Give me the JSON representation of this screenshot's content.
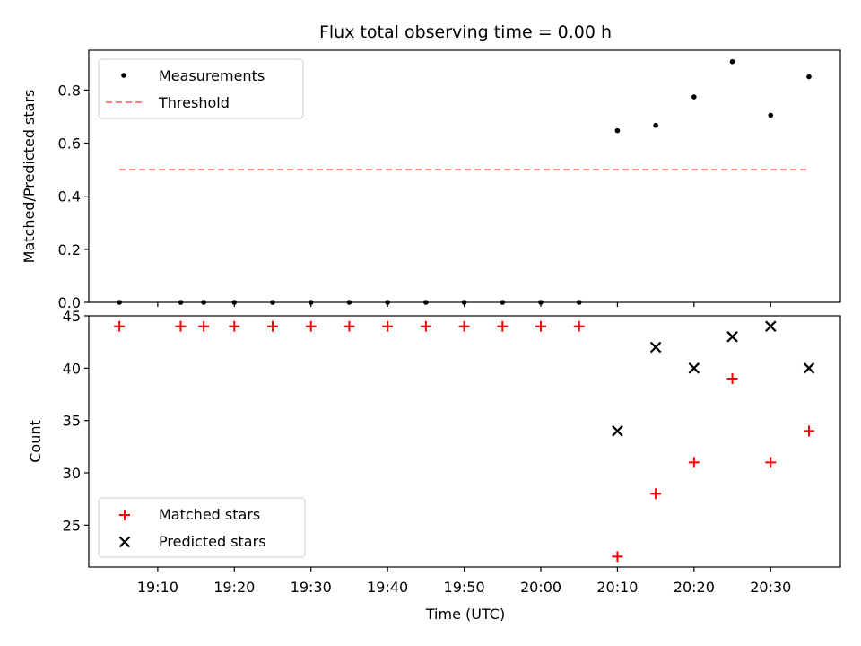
{
  "title": "Flux total observing time = 0.00 h",
  "x_tick_labels": [
    "19:10",
    "19:20",
    "19:30",
    "19:40",
    "19:50",
    "20:00",
    "20:10",
    "20:20",
    "20:30"
  ],
  "colors": {
    "measurement": "#000000",
    "threshold": "#ff7f7f",
    "matched": "#ff0000",
    "predicted": "#000000"
  },
  "chart_data": [
    {
      "type": "scatter",
      "panel": "top",
      "title": "Flux total observing time = 0.00 h",
      "xlabel": "",
      "ylabel": "Matched/Predicted stars",
      "ylim": [
        0.0,
        0.95
      ],
      "y_ticks": [
        "0.0",
        "0.2",
        "0.4",
        "0.6",
        "0.8"
      ],
      "legend_position": "upper-left",
      "series": [
        {
          "name": "Measurements",
          "marker": "dot",
          "x": [
            "19:05",
            "19:13",
            "19:16",
            "19:20",
            "19:25",
            "19:30",
            "19:35",
            "19:40",
            "19:45",
            "19:50",
            "19:55",
            "20:00",
            "20:05",
            "20:10",
            "20:15",
            "20:20",
            "20:25",
            "20:30",
            "20:35"
          ],
          "values": [
            0,
            0,
            0,
            0,
            0,
            0,
            0,
            0,
            0,
            0,
            0,
            0,
            0,
            0.647,
            0.667,
            0.774,
            0.907,
            0.705,
            0.85
          ]
        },
        {
          "name": "Threshold",
          "line": "dashed",
          "x": [
            "19:05",
            "20:35"
          ],
          "values": [
            0.5,
            0.5
          ]
        }
      ]
    },
    {
      "type": "scatter",
      "panel": "bottom",
      "xlabel": "Time (UTC)",
      "ylabel": "Count",
      "ylim": [
        21,
        45
      ],
      "y_ticks": [
        "25",
        "30",
        "35",
        "40",
        "45"
      ],
      "legend_position": "lower-left",
      "series": [
        {
          "name": "Matched stars",
          "marker": "plus",
          "x": [
            "19:05",
            "19:13",
            "19:16",
            "19:20",
            "19:25",
            "19:30",
            "19:35",
            "19:40",
            "19:45",
            "19:50",
            "19:55",
            "20:00",
            "20:05",
            "20:10",
            "20:15",
            "20:20",
            "20:25",
            "20:30",
            "20:35"
          ],
          "values": [
            44,
            44,
            44,
            44,
            44,
            44,
            44,
            44,
            44,
            44,
            44,
            44,
            44,
            22,
            28,
            31,
            39,
            31,
            34
          ]
        },
        {
          "name": "Predicted stars",
          "marker": "x",
          "x": [
            "20:10",
            "20:15",
            "20:20",
            "20:25",
            "20:30",
            "20:35"
          ],
          "values": [
            34,
            42,
            40,
            43,
            44,
            40
          ]
        }
      ]
    }
  ]
}
